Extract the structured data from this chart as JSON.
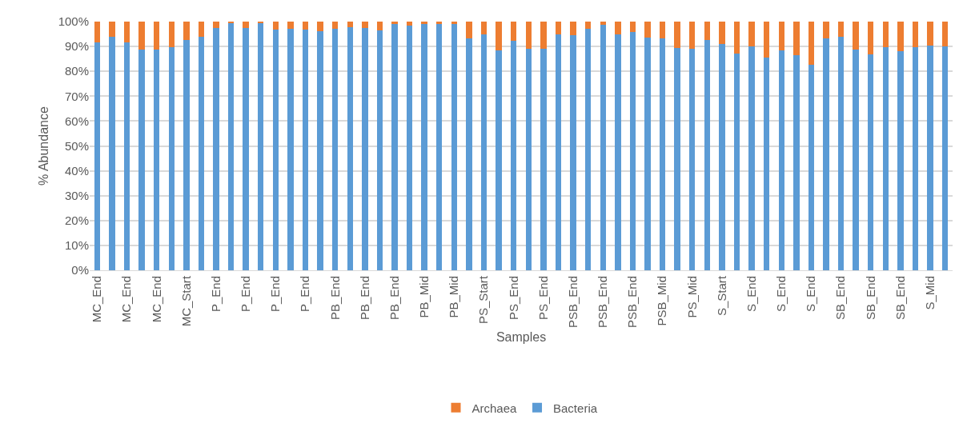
{
  "chart_data": {
    "type": "bar",
    "stacked": true,
    "xlabel": "Samples",
    "ylabel": "% Abundance",
    "categories": [
      "MC_End",
      null,
      "MC_End",
      null,
      "MC_End",
      null,
      "MC_Start",
      null,
      "P_End",
      null,
      "P_End",
      null,
      "P_End",
      null,
      "P_End",
      null,
      "PB_End",
      null,
      "PB_End",
      null,
      "PB_End",
      null,
      "PB_Mid",
      null,
      "PB_Mid",
      null,
      "PS_Start",
      null,
      "PS_End",
      null,
      "PS_End",
      null,
      "PSB_End",
      null,
      "PSB_End",
      null,
      "PSB_End",
      null,
      "PSB_Mid",
      null,
      "PS_Mid",
      null,
      "S_Start",
      null,
      "S_End",
      null,
      "S_End",
      null,
      "S_End",
      null,
      "SB_End",
      null,
      "SB_End",
      null,
      "SB_End",
      null,
      "S_Mid",
      null
    ],
    "series": [
      {
        "name": "Bacteria",
        "color": "#5b9bd5",
        "values": [
          91.7,
          94.0,
          91.7,
          88.7,
          88.7,
          89.7,
          92.5,
          93.8,
          97.4,
          99.4,
          97.4,
          99.4,
          96.8,
          97.0,
          96.8,
          96.3,
          97.0,
          97.6,
          97.5,
          96.5,
          99.0,
          98.3,
          99.0,
          99.0,
          99.0,
          93.3,
          94.7,
          88.5,
          92.3,
          89.2,
          89.0,
          95.0,
          94.5,
          97.0,
          98.6,
          94.7,
          95.7,
          93.6,
          93.2,
          89.3,
          89.1,
          92.5,
          91.0,
          87.2,
          90.0,
          85.5,
          88.4,
          86.4,
          82.7,
          93.3,
          94.0,
          88.6,
          86.7,
          89.7,
          88.1,
          89.7,
          90.4,
          90.0
        ]
      },
      {
        "name": "Archaea",
        "color": "#ed7d31",
        "values": [
          8.3,
          6.0,
          8.3,
          11.3,
          11.3,
          10.3,
          7.5,
          6.2,
          2.6,
          0.6,
          2.6,
          0.6,
          3.2,
          3.0,
          3.2,
          3.7,
          3.0,
          2.4,
          2.5,
          3.5,
          1.0,
          1.7,
          1.0,
          1.0,
          1.0,
          6.7,
          5.3,
          11.5,
          7.7,
          10.8,
          11.0,
          5.0,
          5.5,
          3.0,
          1.4,
          5.3,
          4.3,
          6.4,
          6.8,
          10.7,
          10.9,
          7.5,
          9.0,
          12.8,
          10.0,
          14.5,
          11.6,
          13.6,
          17.3,
          6.7,
          6.0,
          11.4,
          13.3,
          10.3,
          11.9,
          10.3,
          9.6,
          10.0
        ]
      }
    ],
    "ylim": [
      0,
      100
    ],
    "yticks": [
      {
        "value": 0,
        "label": "0%"
      },
      {
        "value": 10,
        "label": "10%"
      },
      {
        "value": 20,
        "label": "20%"
      },
      {
        "value": 30,
        "label": "30%"
      },
      {
        "value": 40,
        "label": "40%"
      },
      {
        "value": 50,
        "label": "50%"
      },
      {
        "value": 60,
        "label": "60%"
      },
      {
        "value": 70,
        "label": "70%"
      },
      {
        "value": 80,
        "label": "80%"
      },
      {
        "value": 90,
        "label": "90%"
      },
      {
        "value": 100,
        "label": "100%"
      }
    ],
    "grid": "y",
    "legend": "bottom"
  }
}
